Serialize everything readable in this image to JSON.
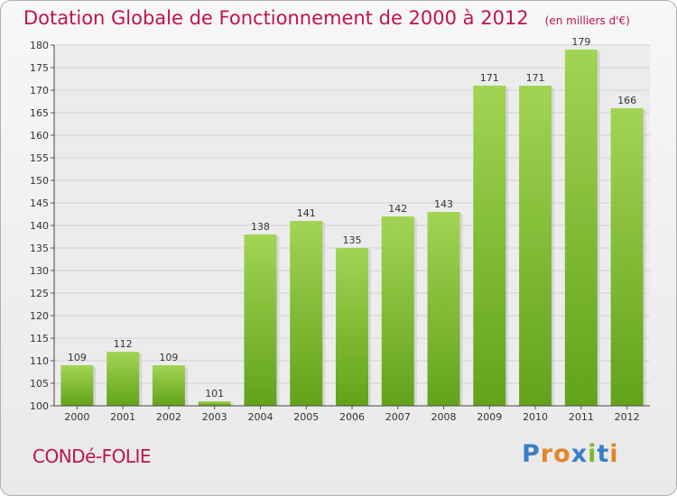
{
  "chart_data": {
    "type": "bar",
    "title": "Dotation Globale de Fonctionnement de 2000 à 2012",
    "subtitle": "(en milliers d'€)",
    "categories": [
      "2000",
      "2001",
      "2002",
      "2003",
      "2004",
      "2005",
      "2006",
      "2007",
      "2008",
      "2009",
      "2010",
      "2011",
      "2012"
    ],
    "values": [
      109,
      112,
      109,
      101,
      138,
      141,
      135,
      142,
      143,
      171,
      171,
      179,
      166
    ],
    "ylim": [
      100,
      180
    ],
    "ytick_step": 5,
    "grid": true,
    "xlabel": "",
    "ylabel": ""
  },
  "footer": {
    "town_name": "CONDé-FOLIE",
    "logo_text": "Proxiti"
  },
  "colors": {
    "title": "#c0134f",
    "bar_light": "#a2d454",
    "bar_dark": "#62a31a",
    "logo": [
      "#3a7fc7",
      "#e4842a",
      "#e4842a",
      "#3a7fc7",
      "#7cb82f",
      "#3a7fc7",
      "#e4842a"
    ]
  }
}
